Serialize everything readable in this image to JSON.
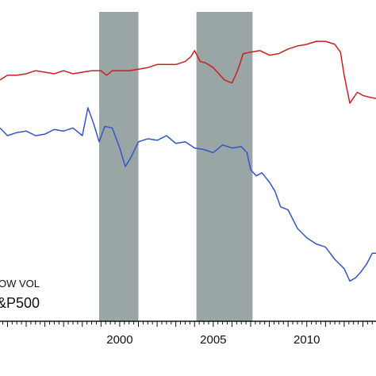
{
  "chart_data": {
    "type": "line",
    "title": "",
    "xlabel": "",
    "ylabel": "",
    "xlim": [
      1993.6,
      2013.7
    ],
    "ylim": [
      0,
      1
    ],
    "grid": false,
    "legend_position": "bottom-left",
    "legend_entries": [
      "OW VOL",
      "&P500"
    ],
    "x_ticks": [
      {
        "value": 2000,
        "label": "2000"
      },
      {
        "value": 2005,
        "label": "2005"
      },
      {
        "value": 2010,
        "label": "2010"
      }
    ],
    "shaded_periods": [
      {
        "start": 1998.9,
        "end": 2001.0
      },
      {
        "start": 2004.1,
        "end": 2007.1
      }
    ],
    "series": [
      {
        "color": "#cc1f1f",
        "x": [
          1993.6,
          1994.0,
          1994.5,
          1995.0,
          1995.5,
          1996.0,
          1996.5,
          1997.0,
          1997.5,
          1998.0,
          1998.5,
          1999.0,
          1999.3,
          1999.6,
          2000.0,
          2000.5,
          2001.0,
          2001.5,
          2002.0,
          2002.5,
          2003.0,
          2003.5,
          2003.8,
          2004.0,
          2004.3,
          2004.6,
          2005.0,
          2005.3,
          2005.6,
          2006.0,
          2006.3,
          2006.6,
          2007.0,
          2007.5,
          2008.0,
          2008.5,
          2009.0,
          2009.5,
          2010.0,
          2010.5,
          2011.0,
          2011.5,
          2011.8,
          2012.0,
          2012.3,
          2012.7,
          2013.0,
          2013.3,
          2013.7
        ],
        "values": [
          0.78,
          0.795,
          0.795,
          0.8,
          0.81,
          0.805,
          0.8,
          0.81,
          0.8,
          0.805,
          0.81,
          0.81,
          0.795,
          0.81,
          0.81,
          0.81,
          0.815,
          0.82,
          0.83,
          0.83,
          0.83,
          0.84,
          0.855,
          0.875,
          0.84,
          0.835,
          0.82,
          0.8,
          0.78,
          0.77,
          0.81,
          0.865,
          0.87,
          0.875,
          0.86,
          0.865,
          0.88,
          0.89,
          0.895,
          0.905,
          0.905,
          0.895,
          0.87,
          0.795,
          0.705,
          0.74,
          0.73,
          0.725,
          0.72
        ]
      },
      {
        "color": "#3355cc",
        "x": [
          1993.6,
          1994.0,
          1994.5,
          1995.0,
          1995.5,
          1996.0,
          1996.5,
          1997.0,
          1997.5,
          1998.0,
          1998.3,
          1998.6,
          1998.9,
          1999.2,
          1999.6,
          2000.0,
          2000.3,
          2000.6,
          2001.0,
          2001.5,
          2002.0,
          2002.5,
          2003.0,
          2003.5,
          2004.0,
          2004.5,
          2005.0,
          2005.5,
          2006.0,
          2006.5,
          2006.8,
          2007.0,
          2007.3,
          2007.6,
          2008.0,
          2008.3,
          2008.6,
          2009.0,
          2009.5,
          2010.0,
          2010.5,
          2011.0,
          2011.5,
          2012.0,
          2012.3,
          2012.6,
          2012.9,
          2013.2,
          2013.5,
          2013.7
        ],
        "values": [
          0.625,
          0.6,
          0.61,
          0.615,
          0.6,
          0.605,
          0.62,
          0.615,
          0.625,
          0.6,
          0.69,
          0.64,
          0.58,
          0.63,
          0.625,
          0.56,
          0.5,
          0.53,
          0.58,
          0.59,
          0.585,
          0.6,
          0.575,
          0.58,
          0.56,
          0.555,
          0.545,
          0.57,
          0.56,
          0.565,
          0.545,
          0.49,
          0.47,
          0.48,
          0.45,
          0.42,
          0.37,
          0.36,
          0.3,
          0.27,
          0.25,
          0.24,
          0.2,
          0.17,
          0.13,
          0.14,
          0.16,
          0.185,
          0.22,
          0.22
        ]
      }
    ]
  }
}
